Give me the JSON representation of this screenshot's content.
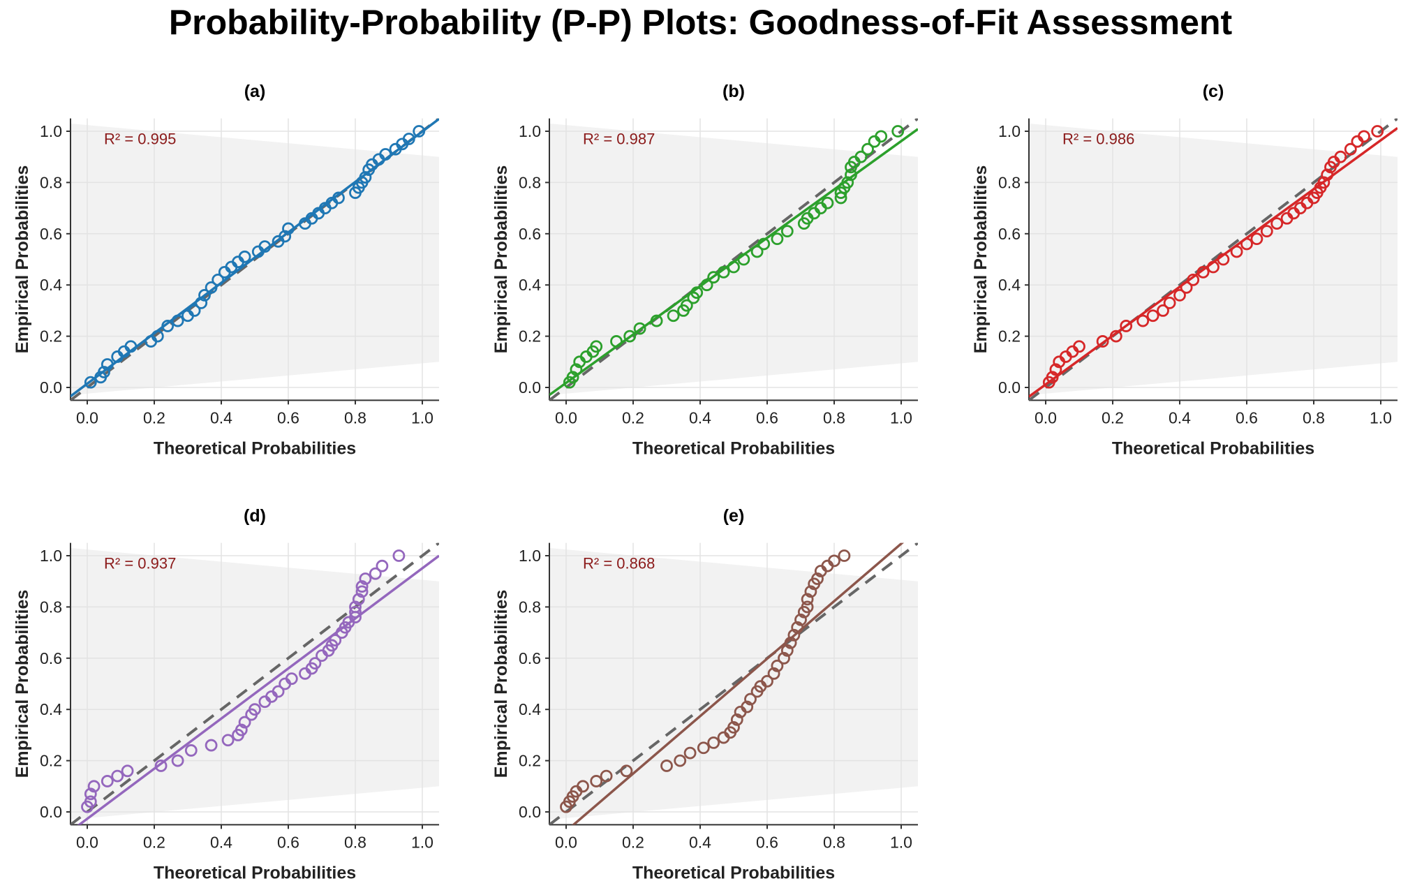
{
  "title": "Probability-Probability (P-P) Plots: Goodness-of-Fit Assessment",
  "chart_data": [
    {
      "type": "scatter",
      "panel": "(a)",
      "r2_label": "R² = 0.995",
      "color": "#1f77b4",
      "xlabel": "Theoretical Probabilities",
      "ylabel": "Empirical Probabilities",
      "xlim": [
        0,
        1
      ],
      "ylim": [
        0,
        1
      ],
      "xticks": [
        "0.0",
        "0.2",
        "0.4",
        "0.6",
        "0.8",
        "1.0"
      ],
      "yticks": [
        "0.0",
        "0.2",
        "0.4",
        "0.6",
        "0.8",
        "1.0"
      ],
      "grid": true,
      "reference_line": "y = x (dashed gray)",
      "points": [
        [
          0.01,
          0.02
        ],
        [
          0.04,
          0.04
        ],
        [
          0.05,
          0.06
        ],
        [
          0.06,
          0.09
        ],
        [
          0.09,
          0.12
        ],
        [
          0.11,
          0.14
        ],
        [
          0.13,
          0.16
        ],
        [
          0.19,
          0.18
        ],
        [
          0.21,
          0.2
        ],
        [
          0.24,
          0.24
        ],
        [
          0.27,
          0.26
        ],
        [
          0.3,
          0.28
        ],
        [
          0.32,
          0.3
        ],
        [
          0.34,
          0.33
        ],
        [
          0.35,
          0.36
        ],
        [
          0.37,
          0.39
        ],
        [
          0.39,
          0.42
        ],
        [
          0.41,
          0.45
        ],
        [
          0.43,
          0.47
        ],
        [
          0.45,
          0.49
        ],
        [
          0.47,
          0.51
        ],
        [
          0.51,
          0.53
        ],
        [
          0.53,
          0.55
        ],
        [
          0.57,
          0.57
        ],
        [
          0.59,
          0.59
        ],
        [
          0.6,
          0.62
        ],
        [
          0.65,
          0.64
        ],
        [
          0.67,
          0.66
        ],
        [
          0.69,
          0.68
        ],
        [
          0.71,
          0.7
        ],
        [
          0.73,
          0.72
        ],
        [
          0.75,
          0.74
        ],
        [
          0.8,
          0.76
        ],
        [
          0.81,
          0.78
        ],
        [
          0.82,
          0.8
        ],
        [
          0.83,
          0.82
        ],
        [
          0.84,
          0.85
        ],
        [
          0.85,
          0.87
        ],
        [
          0.87,
          0.89
        ],
        [
          0.89,
          0.91
        ],
        [
          0.92,
          0.93
        ],
        [
          0.94,
          0.95
        ],
        [
          0.96,
          0.97
        ],
        [
          0.99,
          1.0
        ]
      ]
    },
    {
      "type": "scatter",
      "panel": "(b)",
      "r2_label": "R² = 0.987",
      "color": "#2ca02c",
      "xlabel": "Theoretical Probabilities",
      "ylabel": "Empirical Probabilities",
      "xlim": [
        0,
        1
      ],
      "ylim": [
        0,
        1
      ],
      "xticks": [
        "0.0",
        "0.2",
        "0.4",
        "0.6",
        "0.8",
        "1.0"
      ],
      "yticks": [
        "0.0",
        "0.2",
        "0.4",
        "0.6",
        "0.8",
        "1.0"
      ],
      "grid": true,
      "reference_line": "y = x (dashed gray)",
      "points": [
        [
          0.01,
          0.02
        ],
        [
          0.02,
          0.04
        ],
        [
          0.03,
          0.07
        ],
        [
          0.04,
          0.1
        ],
        [
          0.06,
          0.12
        ],
        [
          0.08,
          0.14
        ],
        [
          0.09,
          0.16
        ],
        [
          0.15,
          0.18
        ],
        [
          0.19,
          0.2
        ],
        [
          0.22,
          0.23
        ],
        [
          0.27,
          0.26
        ],
        [
          0.32,
          0.28
        ],
        [
          0.35,
          0.3
        ],
        [
          0.36,
          0.32
        ],
        [
          0.38,
          0.35
        ],
        [
          0.39,
          0.37
        ],
        [
          0.42,
          0.4
        ],
        [
          0.44,
          0.43
        ],
        [
          0.47,
          0.45
        ],
        [
          0.5,
          0.47
        ],
        [
          0.53,
          0.5
        ],
        [
          0.57,
          0.53
        ],
        [
          0.59,
          0.56
        ],
        [
          0.63,
          0.58
        ],
        [
          0.66,
          0.61
        ],
        [
          0.71,
          0.64
        ],
        [
          0.72,
          0.66
        ],
        [
          0.74,
          0.68
        ],
        [
          0.76,
          0.7
        ],
        [
          0.78,
          0.72
        ],
        [
          0.82,
          0.74
        ],
        [
          0.82,
          0.76
        ],
        [
          0.83,
          0.78
        ],
        [
          0.84,
          0.8
        ],
        [
          0.85,
          0.83
        ],
        [
          0.85,
          0.86
        ],
        [
          0.86,
          0.88
        ],
        [
          0.88,
          0.9
        ],
        [
          0.9,
          0.93
        ],
        [
          0.92,
          0.96
        ],
        [
          0.94,
          0.98
        ],
        [
          0.99,
          1.0
        ]
      ]
    },
    {
      "type": "scatter",
      "panel": "(c)",
      "r2_label": "R² = 0.986",
      "color": "#d62728",
      "xlabel": "Theoretical Probabilities",
      "ylabel": "Empirical Probabilities",
      "xlim": [
        0,
        1
      ],
      "ylim": [
        0,
        1
      ],
      "xticks": [
        "0.0",
        "0.2",
        "0.4",
        "0.6",
        "0.8",
        "1.0"
      ],
      "yticks": [
        "0.0",
        "0.2",
        "0.4",
        "0.6",
        "0.8",
        "1.0"
      ],
      "grid": true,
      "reference_line": "y = x (dashed gray)",
      "points": [
        [
          0.01,
          0.02
        ],
        [
          0.02,
          0.04
        ],
        [
          0.03,
          0.07
        ],
        [
          0.04,
          0.1
        ],
        [
          0.06,
          0.12
        ],
        [
          0.08,
          0.14
        ],
        [
          0.1,
          0.16
        ],
        [
          0.17,
          0.18
        ],
        [
          0.21,
          0.2
        ],
        [
          0.24,
          0.24
        ],
        [
          0.29,
          0.26
        ],
        [
          0.32,
          0.28
        ],
        [
          0.35,
          0.3
        ],
        [
          0.37,
          0.33
        ],
        [
          0.4,
          0.36
        ],
        [
          0.42,
          0.39
        ],
        [
          0.44,
          0.42
        ],
        [
          0.47,
          0.45
        ],
        [
          0.5,
          0.47
        ],
        [
          0.53,
          0.5
        ],
        [
          0.57,
          0.53
        ],
        [
          0.6,
          0.56
        ],
        [
          0.63,
          0.58
        ],
        [
          0.66,
          0.61
        ],
        [
          0.69,
          0.64
        ],
        [
          0.72,
          0.66
        ],
        [
          0.74,
          0.68
        ],
        [
          0.76,
          0.7
        ],
        [
          0.78,
          0.72
        ],
        [
          0.8,
          0.74
        ],
        [
          0.81,
          0.76
        ],
        [
          0.82,
          0.78
        ],
        [
          0.83,
          0.8
        ],
        [
          0.84,
          0.83
        ],
        [
          0.85,
          0.86
        ],
        [
          0.86,
          0.88
        ],
        [
          0.88,
          0.9
        ],
        [
          0.91,
          0.93
        ],
        [
          0.93,
          0.96
        ],
        [
          0.95,
          0.98
        ],
        [
          0.99,
          1.0
        ]
      ]
    },
    {
      "type": "scatter",
      "panel": "(d)",
      "r2_label": "R² = 0.937",
      "color": "#9467bd",
      "xlabel": "Theoretical Probabilities",
      "ylabel": "Empirical Probabilities",
      "xlim": [
        0,
        1
      ],
      "ylim": [
        0,
        1
      ],
      "xticks": [
        "0.0",
        "0.2",
        "0.4",
        "0.6",
        "0.8",
        "1.0"
      ],
      "yticks": [
        "0.0",
        "0.2",
        "0.4",
        "0.6",
        "0.8",
        "1.0"
      ],
      "grid": true,
      "reference_line": "y = x (dashed gray)",
      "points": [
        [
          0.0,
          0.02
        ],
        [
          0.01,
          0.04
        ],
        [
          0.01,
          0.07
        ],
        [
          0.02,
          0.1
        ],
        [
          0.06,
          0.12
        ],
        [
          0.09,
          0.14
        ],
        [
          0.12,
          0.16
        ],
        [
          0.22,
          0.18
        ],
        [
          0.27,
          0.2
        ],
        [
          0.31,
          0.24
        ],
        [
          0.37,
          0.26
        ],
        [
          0.42,
          0.28
        ],
        [
          0.45,
          0.3
        ],
        [
          0.46,
          0.32
        ],
        [
          0.47,
          0.35
        ],
        [
          0.49,
          0.38
        ],
        [
          0.5,
          0.4
        ],
        [
          0.53,
          0.43
        ],
        [
          0.55,
          0.45
        ],
        [
          0.57,
          0.47
        ],
        [
          0.59,
          0.5
        ],
        [
          0.61,
          0.52
        ],
        [
          0.65,
          0.54
        ],
        [
          0.67,
          0.56
        ],
        [
          0.68,
          0.58
        ],
        [
          0.7,
          0.61
        ],
        [
          0.72,
          0.63
        ],
        [
          0.73,
          0.65
        ],
        [
          0.74,
          0.67
        ],
        [
          0.76,
          0.7
        ],
        [
          0.77,
          0.72
        ],
        [
          0.78,
          0.74
        ],
        [
          0.8,
          0.76
        ],
        [
          0.8,
          0.78
        ],
        [
          0.8,
          0.8
        ],
        [
          0.81,
          0.83
        ],
        [
          0.82,
          0.86
        ],
        [
          0.82,
          0.88
        ],
        [
          0.83,
          0.91
        ],
        [
          0.86,
          0.93
        ],
        [
          0.88,
          0.96
        ],
        [
          0.93,
          1.0
        ]
      ]
    },
    {
      "type": "scatter",
      "panel": "(e)",
      "r2_label": "R² = 0.868",
      "color": "#8c564b",
      "xlabel": "Theoretical Probabilities",
      "ylabel": "Empirical Probabilities",
      "xlim": [
        0,
        1
      ],
      "ylim": [
        0,
        1
      ],
      "xticks": [
        "0.0",
        "0.2",
        "0.4",
        "0.6",
        "0.8",
        "1.0"
      ],
      "yticks": [
        "0.0",
        "0.2",
        "0.4",
        "0.6",
        "0.8",
        "1.0"
      ],
      "grid": true,
      "reference_line": "y = x (dashed gray)",
      "points": [
        [
          0.0,
          0.02
        ],
        [
          0.01,
          0.04
        ],
        [
          0.02,
          0.06
        ],
        [
          0.03,
          0.08
        ],
        [
          0.05,
          0.1
        ],
        [
          0.09,
          0.12
        ],
        [
          0.12,
          0.14
        ],
        [
          0.18,
          0.16
        ],
        [
          0.3,
          0.18
        ],
        [
          0.34,
          0.2
        ],
        [
          0.37,
          0.23
        ],
        [
          0.41,
          0.25
        ],
        [
          0.44,
          0.27
        ],
        [
          0.47,
          0.29
        ],
        [
          0.49,
          0.31
        ],
        [
          0.5,
          0.33
        ],
        [
          0.51,
          0.36
        ],
        [
          0.52,
          0.39
        ],
        [
          0.54,
          0.41
        ],
        [
          0.55,
          0.44
        ],
        [
          0.57,
          0.47
        ],
        [
          0.58,
          0.49
        ],
        [
          0.6,
          0.51
        ],
        [
          0.62,
          0.54
        ],
        [
          0.63,
          0.57
        ],
        [
          0.65,
          0.6
        ],
        [
          0.66,
          0.63
        ],
        [
          0.67,
          0.66
        ],
        [
          0.68,
          0.69
        ],
        [
          0.69,
          0.72
        ],
        [
          0.7,
          0.75
        ],
        [
          0.71,
          0.78
        ],
        [
          0.72,
          0.8
        ],
        [
          0.72,
          0.83
        ],
        [
          0.73,
          0.86
        ],
        [
          0.74,
          0.89
        ],
        [
          0.75,
          0.91
        ],
        [
          0.76,
          0.94
        ],
        [
          0.78,
          0.96
        ],
        [
          0.8,
          0.98
        ],
        [
          0.83,
          1.0
        ]
      ]
    }
  ]
}
